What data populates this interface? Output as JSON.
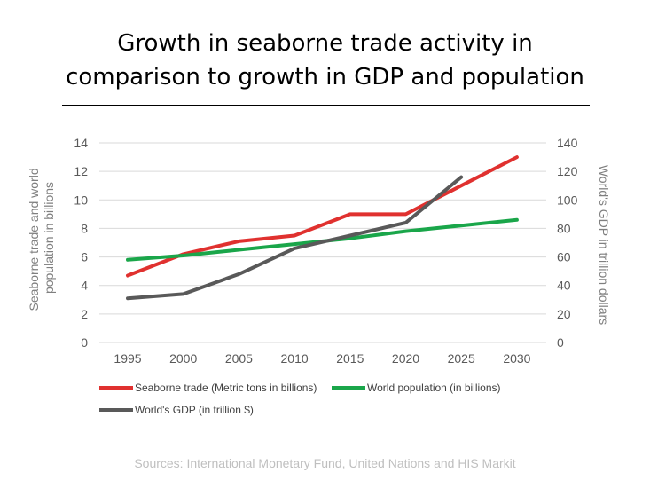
{
  "chart_data": {
    "type": "line",
    "title_lines": [
      "Growth in seaborne trade activity in",
      "comparison to growth in GDP and population"
    ],
    "x": [
      "1995",
      "2000",
      "2005",
      "2010",
      "2015",
      "2020",
      "2025",
      "2030"
    ],
    "y_left": {
      "label_lines": [
        "Seaborne trade and world",
        "population in billions"
      ],
      "range": [
        0,
        14
      ],
      "ticks": [
        0,
        2,
        4,
        6,
        8,
        10,
        12,
        14
      ]
    },
    "y_right": {
      "label": "World's GDP in trillion dollars",
      "range": [
        0,
        140
      ],
      "ticks": [
        0,
        20,
        40,
        60,
        80,
        100,
        120,
        140
      ]
    },
    "grid": true,
    "legend_position": "bottom",
    "series": [
      {
        "name": "Seaborne trade (Metric tons in billions)",
        "axis": "left",
        "color": "#e0312f",
        "values": [
          4.7,
          6.2,
          7.1,
          7.5,
          9.0,
          9.0,
          11.0,
          13.0
        ]
      },
      {
        "name": "World population (in billions)",
        "axis": "left",
        "color": "#1aa64a",
        "values": [
          5.8,
          6.1,
          6.5,
          6.9,
          7.3,
          7.8,
          8.2,
          8.6
        ]
      },
      {
        "name": "World's GDP (in trillion $)",
        "axis": "right",
        "color": "#595959",
        "values": [
          31,
          34,
          48,
          66,
          75,
          84,
          116,
          null
        ]
      }
    ],
    "source": "Sources: International Monetary Fund, United Nations and HIS Markit"
  }
}
